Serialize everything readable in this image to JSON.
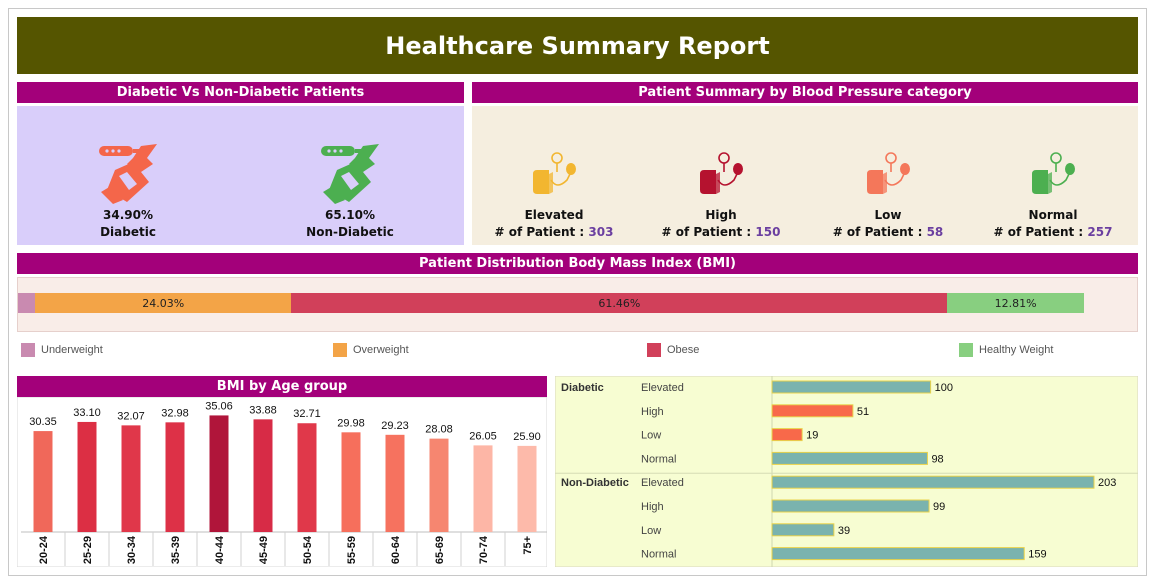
{
  "title": "Healthcare Summary Report",
  "diabetic_section": {
    "title": "Diabetic Vs Non-Diabetic Patients",
    "diabetic": {
      "pct": "34.90%",
      "label": "Diabetic",
      "color": "#f4664a"
    },
    "non_diabetic": {
      "pct": "65.10%",
      "label": "Non-Diabetic",
      "color": "#4caf50"
    }
  },
  "bp_section": {
    "title": "Patient Summary by Blood Pressure category",
    "count_label": "# of Patient :",
    "items": [
      {
        "name": "Elevated",
        "count": "303",
        "color": "#f2b630"
      },
      {
        "name": "High",
        "count": "150",
        "color": "#b5122f"
      },
      {
        "name": "Low",
        "count": "58",
        "color": "#f4775a"
      },
      {
        "name": "Normal",
        "count": "257",
        "color": "#4caf50"
      }
    ]
  },
  "bmi_section": {
    "title": "Patient Distribution Body Mass Index (BMI)",
    "segments": [
      {
        "name": "Underweight",
        "value": 1.6,
        "label": "",
        "color": "#c98ab0"
      },
      {
        "name": "Overweight",
        "value": 24.03,
        "label": "24.03%",
        "color": "#f3a447"
      },
      {
        "name": "Obese",
        "value": 61.46,
        "label": "61.46%",
        "color": "#d1405a"
      },
      {
        "name": "Healthy Weight",
        "value": 12.81,
        "label": "12.81%",
        "color": "#88cf80"
      }
    ]
  },
  "age_section": {
    "title": "BMI by Age group"
  },
  "chart_data": [
    {
      "type": "bar",
      "title": "BMI by Age group",
      "categories": [
        "20-24",
        "25-29",
        "30-34",
        "35-39",
        "40-44",
        "45-49",
        "50-54",
        "55-59",
        "60-64",
        "65-69",
        "70-74",
        "75+"
      ],
      "values": [
        30.35,
        33.1,
        32.07,
        32.98,
        35.06,
        33.88,
        32.71,
        29.98,
        29.23,
        28.08,
        26.05,
        25.9
      ],
      "value_labels": [
        "30.35",
        "33.10",
        "32.07",
        "32.98",
        "35.06",
        "33.88",
        "32.71",
        "29.98",
        "29.23",
        "28.08",
        "26.05",
        "25.90"
      ],
      "colors": [
        "#f0685a",
        "#dc2f44",
        "#e0374a",
        "#dd3147",
        "#b0153a",
        "#d72b46",
        "#e0384a",
        "#f66f5c",
        "#f6725f",
        "#f68670",
        "#fdb6a6",
        "#fdbaaa"
      ]
    },
    {
      "type": "bar",
      "orientation": "horizontal",
      "groups": [
        {
          "name": "Diabetic",
          "items": [
            {
              "label": "Elevated",
              "value": 100,
              "color": "#7ab3ae"
            },
            {
              "label": "High",
              "value": 51,
              "color": "#f8694a"
            },
            {
              "label": "Low",
              "value": 19,
              "color": "#f8694a"
            },
            {
              "label": "Normal",
              "value": 98,
              "color": "#7ab3ae"
            }
          ]
        },
        {
          "name": "Non-Diabetic",
          "items": [
            {
              "label": "Elevated",
              "value": 203,
              "color": "#7ab3ae"
            },
            {
              "label": "High",
              "value": 99,
              "color": "#7ab3ae"
            },
            {
              "label": "Low",
              "value": 39,
              "color": "#7ab3ae"
            },
            {
              "label": "Normal",
              "value": 159,
              "color": "#7ab3ae"
            }
          ]
        }
      ],
      "xlim": [
        0,
        203
      ]
    }
  ]
}
